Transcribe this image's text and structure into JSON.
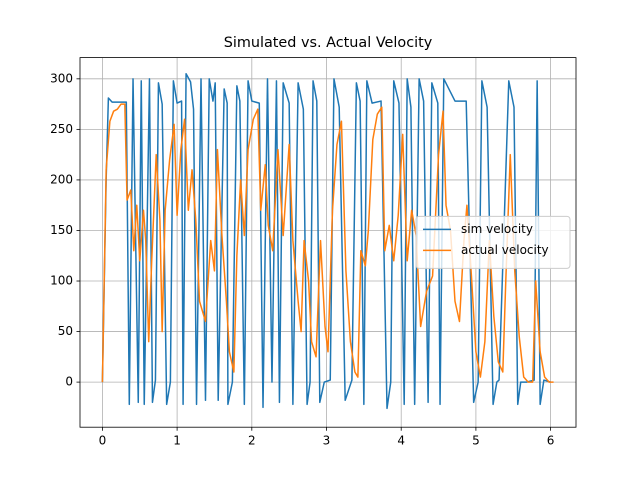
{
  "chart_data": {
    "type": "line",
    "title": "Simulated vs. Actual Velocity",
    "xlim": [
      -0.3,
      6.34
    ],
    "ylim": [
      -44.6,
      321
    ],
    "xticks": [
      0,
      1,
      2,
      3,
      4,
      5,
      6
    ],
    "yticks": [
      0,
      50,
      100,
      150,
      200,
      250,
      300
    ],
    "grid": true,
    "legend": "center right",
    "series": [
      {
        "name": "sim velocity",
        "color": "#1f77b4",
        "x": [
          0,
          0.05,
          0.08,
          0.13,
          0.32,
          0.36,
          0.41,
          0.48,
          0.52,
          0.56,
          0.63,
          0.67,
          0.71,
          0.75,
          0.8,
          0.86,
          0.91,
          0.95,
          1.0,
          1.06,
          1.08,
          1.12,
          1.18,
          1.22,
          1.26,
          1.32,
          1.38,
          1.43,
          1.48,
          1.51,
          1.55,
          1.63,
          1.67,
          1.68,
          1.74,
          1.8,
          1.84,
          1.9,
          1.95,
          2.0,
          2.1,
          2.15,
          2.21,
          2.27,
          2.33,
          2.37,
          2.42,
          2.5,
          2.55,
          2.62,
          2.69,
          2.74,
          2.78,
          2.82,
          2.87,
          2.91,
          2.97,
          3.05,
          3.1,
          3.17,
          3.25,
          3.34,
          3.4,
          3.45,
          3.5,
          3.54,
          3.61,
          3.73,
          3.81,
          3.86,
          3.9,
          3.97,
          4.04,
          4.08,
          4.13,
          4.18,
          4.24,
          4.3,
          4.36,
          4.41,
          4.49,
          4.52,
          4.57,
          4.72,
          4.87,
          4.97,
          5.03,
          5.08,
          5.15,
          5.23,
          5.28,
          5.31,
          5.44,
          5.51,
          5.56,
          5.6,
          5.68,
          5.78,
          5.82,
          5.86,
          5.91,
          6.0
        ],
        "values": [
          0,
          200,
          281,
          277,
          277,
          -22,
          300,
          -20,
          298,
          -22,
          300,
          -20,
          2,
          296,
          275,
          -22,
          0,
          298,
          276,
          278,
          -22,
          305,
          297,
          270,
          -22,
          300,
          -18,
          300,
          278,
          296,
          -18,
          290,
          276,
          -22,
          0,
          293,
          278,
          -22,
          298,
          278,
          276,
          -25,
          300,
          0,
          298,
          -20,
          296,
          276,
          -22,
          296,
          270,
          -22,
          0,
          298,
          278,
          -20,
          0,
          2,
          300,
          272,
          -18,
          2,
          296,
          278,
          -22,
          298,
          276,
          278,
          -26,
          0,
          298,
          276,
          -22,
          300,
          272,
          -22,
          300,
          278,
          -20,
          296,
          276,
          -22,
          300,
          278,
          278,
          -20,
          0,
          298,
          272,
          -22,
          0,
          2,
          298,
          272,
          -22,
          0,
          0,
          2,
          298,
          -22,
          2,
          0
        ]
      },
      {
        "name": "actual velocity",
        "color": "#ff7f0e",
        "x": [
          0,
          0.05,
          0.1,
          0.15,
          0.2,
          0.25,
          0.3,
          0.33,
          0.38,
          0.42,
          0.46,
          0.5,
          0.55,
          0.58,
          0.62,
          0.66,
          0.72,
          0.77,
          0.8,
          0.84,
          0.9,
          0.96,
          1.0,
          1.05,
          1.1,
          1.15,
          1.2,
          1.25,
          1.3,
          1.38,
          1.45,
          1.5,
          1.54,
          1.6,
          1.66,
          1.7,
          1.76,
          1.8,
          1.85,
          1.9,
          1.95,
          2.02,
          2.08,
          2.12,
          2.18,
          2.22,
          2.28,
          2.35,
          2.42,
          2.5,
          2.55,
          2.62,
          2.66,
          2.7,
          2.76,
          2.8,
          2.86,
          2.92,
          2.98,
          3.02,
          3.08,
          3.14,
          3.2,
          3.26,
          3.32,
          3.38,
          3.42,
          3.46,
          3.52,
          3.56,
          3.62,
          3.68,
          3.74,
          3.78,
          3.84,
          3.9,
          3.96,
          4.02,
          4.08,
          4.14,
          4.2,
          4.26,
          4.34,
          4.42,
          4.5,
          4.56,
          4.6,
          4.66,
          4.72,
          4.78,
          4.84,
          4.88,
          4.94,
          5.0,
          5.06,
          5.12,
          5.18,
          5.24,
          5.3,
          5.36,
          5.4,
          5.46,
          5.52,
          5.58,
          5.64,
          5.7,
          5.76,
          5.8,
          5.86,
          5.92,
          5.98,
          6.04
        ],
        "values": [
          0,
          210,
          258,
          268,
          270,
          275,
          275,
          180,
          190,
          130,
          175,
          120,
          170,
          140,
          40,
          120,
          225,
          160,
          50,
          170,
          220,
          255,
          165,
          230,
          260,
          170,
          210,
          160,
          80,
          60,
          140,
          110,
          230,
          145,
          80,
          30,
          10,
          125,
          200,
          145,
          230,
          260,
          270,
          170,
          215,
          155,
          130,
          230,
          145,
          235,
          140,
          80,
          50,
          140,
          100,
          40,
          25,
          140,
          55,
          30,
          170,
          235,
          258,
          110,
          40,
          10,
          5,
          130,
          115,
          150,
          240,
          265,
          272,
          130,
          155,
          120,
          165,
          245,
          120,
          170,
          145,
          55,
          90,
          105,
          225,
          268,
          175,
          150,
          80,
          60,
          140,
          175,
          105,
          30,
          5,
          40,
          140,
          65,
          20,
          10,
          100,
          225,
          110,
          45,
          5,
          0,
          0,
          100,
          30,
          5,
          0,
          0
        ]
      }
    ]
  }
}
